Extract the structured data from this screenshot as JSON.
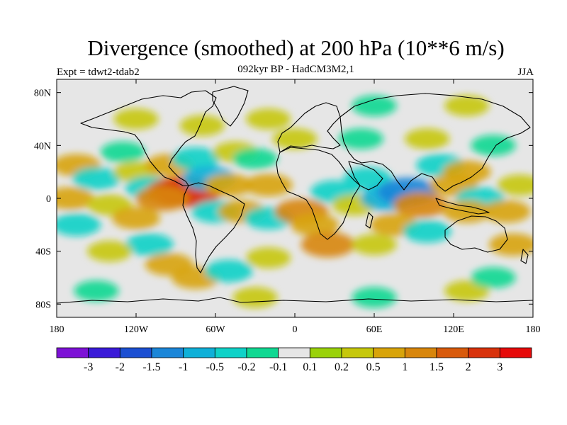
{
  "chart_data": {
    "type": "heatmap",
    "title": "Divergence (smoothed) at 200 hPa (10**6 m/s)",
    "subtitle": "092kyr BP - HadCM3M2,1",
    "experiment_label": "Expt = tdwt2-tdab2",
    "season": "JJA",
    "xlim": [
      -180,
      180
    ],
    "ylim": [
      -90,
      90
    ],
    "x_ticks": [
      {
        "value": -180,
        "label": "180"
      },
      {
        "value": -120,
        "label": "120W"
      },
      {
        "value": -60,
        "label": "60W"
      },
      {
        "value": 0,
        "label": "0"
      },
      {
        "value": 60,
        "label": "60E"
      },
      {
        "value": 120,
        "label": "120E"
      },
      {
        "value": 180,
        "label": "180"
      }
    ],
    "y_ticks": [
      {
        "value": 80,
        "label": "80N"
      },
      {
        "value": 40,
        "label": "40N"
      },
      {
        "value": 0,
        "label": "0"
      },
      {
        "value": -40,
        "label": "40S"
      },
      {
        "value": -80,
        "label": "80S"
      }
    ],
    "colorbar": {
      "boundaries": [
        "-3",
        "-2",
        "-1.5",
        "-1",
        "-0.5",
        "-0.2",
        "-0.1",
        "0.1",
        "0.2",
        "0.5",
        "1",
        "1.5",
        "2",
        "3"
      ],
      "colors": [
        "#7d12d6",
        "#3a1ad8",
        "#1b4fd2",
        "#1b86d8",
        "#0fb0d8",
        "#0fd2c8",
        "#10d892",
        "#e6e6e6",
        "#9ad20a",
        "#c6c80c",
        "#d8a40a",
        "#d8860c",
        "#d85a0c",
        "#d8320c",
        "#e60a0a"
      ]
    },
    "field_regions": [
      {
        "lon": -165,
        "lat": 25,
        "value": 0.5
      },
      {
        "lon": -150,
        "lat": 15,
        "value": -0.5
      },
      {
        "lon": -170,
        "lat": 0,
        "value": 0.5
      },
      {
        "lon": -140,
        "lat": -5,
        "value": 0.2
      },
      {
        "lon": -165,
        "lat": -20,
        "value": -0.5
      },
      {
        "lon": -130,
        "lat": 35,
        "value": -0.2
      },
      {
        "lon": -120,
        "lat": 20,
        "value": 0.2
      },
      {
        "lon": -110,
        "lat": 8,
        "value": -0.5
      },
      {
        "lon": -90,
        "lat": 5,
        "value": 1.5
      },
      {
        "lon": -80,
        "lat": 5,
        "value": 2
      },
      {
        "lon": -100,
        "lat": 0,
        "value": 1
      },
      {
        "lon": -95,
        "lat": 25,
        "value": 0.5
      },
      {
        "lon": -75,
        "lat": 30,
        "value": -0.5
      },
      {
        "lon": -65,
        "lat": 15,
        "value": -1
      },
      {
        "lon": -50,
        "lat": 10,
        "value": 0.5
      },
      {
        "lon": -45,
        "lat": 35,
        "value": 0.2
      },
      {
        "lon": -30,
        "lat": 30,
        "value": -0.2
      },
      {
        "lon": -20,
        "lat": 10,
        "value": 0.5
      },
      {
        "lon": -60,
        "lat": -10,
        "value": -0.5
      },
      {
        "lon": -40,
        "lat": -10,
        "value": 0.5
      },
      {
        "lon": -120,
        "lat": -15,
        "value": 0.5
      },
      {
        "lon": -110,
        "lat": -35,
        "value": -0.5
      },
      {
        "lon": -140,
        "lat": -40,
        "value": 0.2
      },
      {
        "lon": -95,
        "lat": -50,
        "value": 0.5
      },
      {
        "lon": -75,
        "lat": -60,
        "value": 0.5
      },
      {
        "lon": -50,
        "lat": -55,
        "value": -0.5
      },
      {
        "lon": -20,
        "lat": -45,
        "value": 0.2
      },
      {
        "lon": -20,
        "lat": -15,
        "value": -0.5
      },
      {
        "lon": 5,
        "lat": -10,
        "value": 1
      },
      {
        "lon": 15,
        "lat": -20,
        "value": 0.5
      },
      {
        "lon": 25,
        "lat": -35,
        "value": 1
      },
      {
        "lon": 30,
        "lat": 5,
        "value": -0.5
      },
      {
        "lon": 45,
        "lat": -5,
        "value": 0.2
      },
      {
        "lon": 55,
        "lat": 15,
        "value": -0.5
      },
      {
        "lon": 70,
        "lat": 0,
        "value": -1
      },
      {
        "lon": 85,
        "lat": 5,
        "value": -1.5
      },
      {
        "lon": 95,
        "lat": -5,
        "value": 1
      },
      {
        "lon": 75,
        "lat": -20,
        "value": 0.5
      },
      {
        "lon": 100,
        "lat": -25,
        "value": -0.5
      },
      {
        "lon": 60,
        "lat": -35,
        "value": 0.2
      },
      {
        "lon": 110,
        "lat": 25,
        "value": -0.5
      },
      {
        "lon": 120,
        "lat": 10,
        "value": 0.5
      },
      {
        "lon": 130,
        "lat": 20,
        "value": 0.5
      },
      {
        "lon": 140,
        "lat": 0,
        "value": -0.5
      },
      {
        "lon": 130,
        "lat": -10,
        "value": 0.5
      },
      {
        "lon": 160,
        "lat": -10,
        "value": 0.5
      },
      {
        "lon": 165,
        "lat": -35,
        "value": 0.5
      },
      {
        "lon": 170,
        "lat": 10,
        "value": 0.2
      },
      {
        "lon": 150,
        "lat": 40,
        "value": -0.2
      },
      {
        "lon": 100,
        "lat": 45,
        "value": 0.2
      },
      {
        "lon": 50,
        "lat": 45,
        "value": -0.2
      },
      {
        "lon": 0,
        "lat": 45,
        "value": 0.2
      },
      {
        "lon": -20,
        "lat": 60,
        "value": 0.2
      },
      {
        "lon": -70,
        "lat": 55,
        "value": 0.2
      },
      {
        "lon": -120,
        "lat": 60,
        "value": 0.2
      },
      {
        "lon": 60,
        "lat": 70,
        "value": -0.2
      },
      {
        "lon": 130,
        "lat": 70,
        "value": 0.2
      },
      {
        "lon": -150,
        "lat": -70,
        "value": -0.2
      },
      {
        "lon": -30,
        "lat": -75,
        "value": 0.2
      },
      {
        "lon": 60,
        "lat": -75,
        "value": -0.2
      },
      {
        "lon": 130,
        "lat": -70,
        "value": 0.2
      },
      {
        "lon": 150,
        "lat": -60,
        "value": -0.2
      }
    ]
  }
}
